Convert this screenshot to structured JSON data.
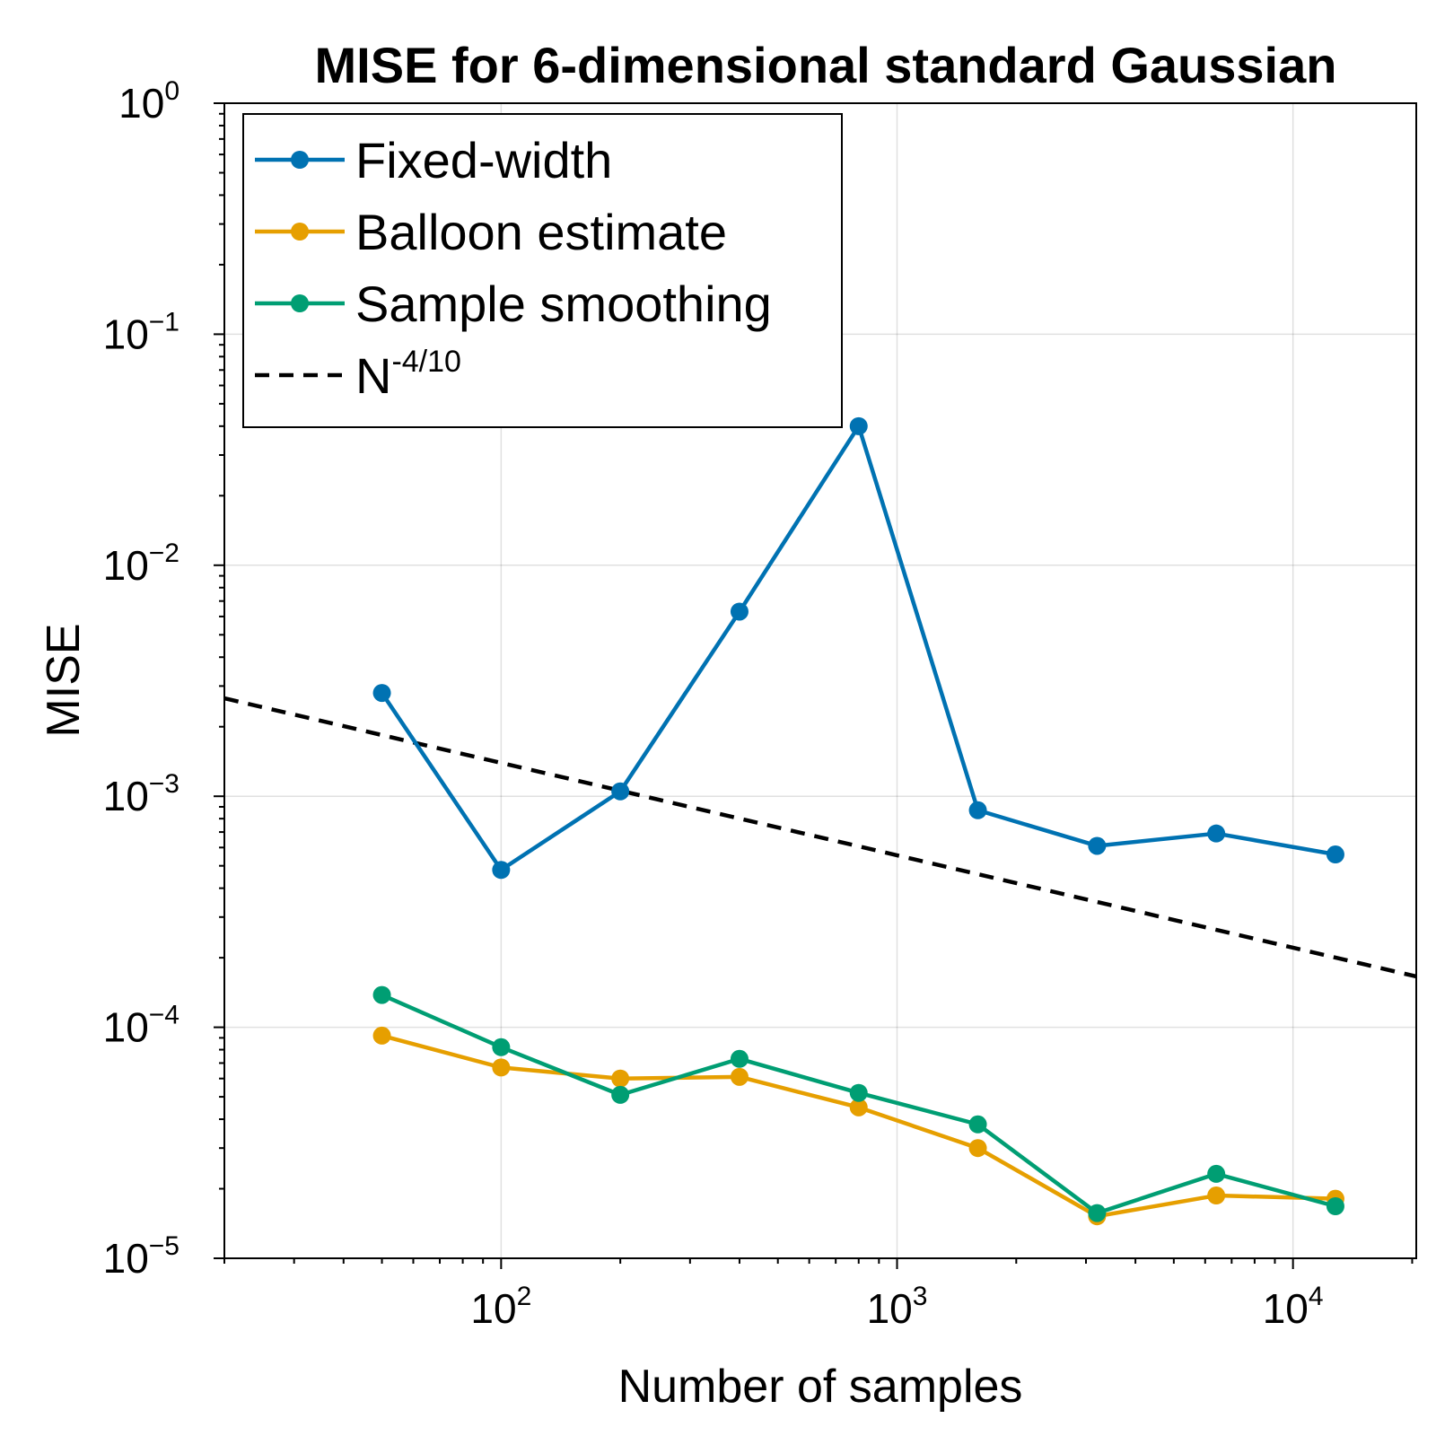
{
  "chart_data": {
    "type": "line",
    "title": "MISE for 6-dimensional standard Gaussian",
    "xlabel": "Number of samples",
    "ylabel": "MISE",
    "xscale": "log",
    "yscale": "log",
    "xlim": [
      20,
      20480
    ],
    "ylim": [
      1e-05,
      1
    ],
    "x_ticks": [
      {
        "value": 100,
        "base": "10",
        "exp": "2"
      },
      {
        "value": 1000,
        "base": "10",
        "exp": "3"
      },
      {
        "value": 10000,
        "base": "10",
        "exp": "4"
      }
    ],
    "y_ticks": [
      {
        "value": 1,
        "base": "10",
        "exp": "0"
      },
      {
        "value": 0.1,
        "base": "10",
        "exp": "−1"
      },
      {
        "value": 0.01,
        "base": "10",
        "exp": "−2"
      },
      {
        "value": 0.001,
        "base": "10",
        "exp": "−3"
      },
      {
        "value": 0.0001,
        "base": "10",
        "exp": "−4"
      },
      {
        "value": 1e-05,
        "base": "10",
        "exp": "−5"
      }
    ],
    "grid": true,
    "legend_position": "top-left",
    "x": [
      50,
      100,
      200,
      400,
      800,
      1600,
      3200,
      6400,
      12800
    ],
    "series": [
      {
        "name": "Fixed-width",
        "color": "#0072b2",
        "marker": "circle",
        "values": [
          0.0028,
          0.00048,
          0.00105,
          0.0063,
          0.04,
          0.00087,
          0.00061,
          0.00069,
          0.00056
        ]
      },
      {
        "name": "Balloon estimate",
        "color": "#e69f00",
        "marker": "circle",
        "values": [
          9.2e-05,
          6.7e-05,
          6e-05,
          6.1e-05,
          4.5e-05,
          3e-05,
          1.52e-05,
          1.87e-05,
          1.81e-05
        ]
      },
      {
        "name": "Sample smoothing",
        "color": "#009e73",
        "marker": "circle",
        "values": [
          0.000138,
          8.2e-05,
          5.1e-05,
          7.3e-05,
          5.2e-05,
          3.8e-05,
          1.57e-05,
          2.32e-05,
          1.68e-05
        ]
      }
    ],
    "reference": {
      "name_base": "N",
      "name_exp": "-4/10",
      "color": "#000000",
      "style": "dashed",
      "coefficient": 0.0088,
      "exponent": -0.4
    }
  }
}
